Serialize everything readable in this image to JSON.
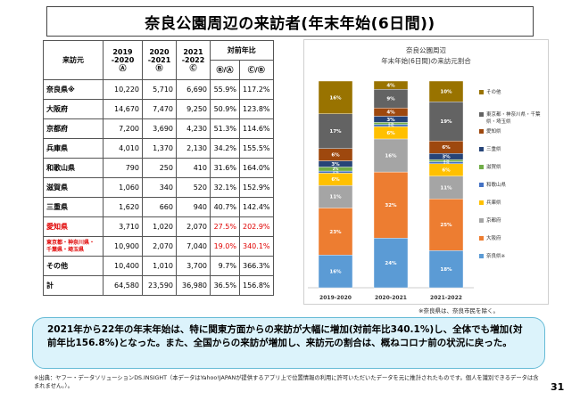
{
  "title": "奈良公園周辺の来訪者(年末年始(6日間))",
  "table": {
    "col_origin": "来訪元",
    "col_y1": "2019\n-2020\nⒶ",
    "col_y2": "2020\n-2021\nⒷ",
    "col_y3": "2021\n-2022\nⒸ",
    "col_ratio": "対前年比",
    "col_ba": "Ⓑ/Ⓐ",
    "col_cb": "Ⓒ/Ⓑ",
    "rows": [
      {
        "name": "奈良県※",
        "y1": "10,220",
        "y2": "5,710",
        "y3": "6,690",
        "ba": "55.9%",
        "cb": "117.2%"
      },
      {
        "name": "大阪府",
        "y1": "14,670",
        "y2": "7,470",
        "y3": "9,250",
        "ba": "50.9%",
        "cb": "123.8%"
      },
      {
        "name": "京都府",
        "y1": "7,200",
        "y2": "3,690",
        "y3": "4,230",
        "ba": "51.3%",
        "cb": "114.6%"
      },
      {
        "name": "兵庫県",
        "y1": "4,010",
        "y2": "1,370",
        "y3": "2,130",
        "ba": "34.2%",
        "cb": "155.5%"
      },
      {
        "name": "和歌山県",
        "y1": "790",
        "y2": "250",
        "y3": "410",
        "ba": "31.6%",
        "cb": "164.0%"
      },
      {
        "name": "滋賀県",
        "y1": "1,060",
        "y2": "340",
        "y3": "520",
        "ba": "32.1%",
        "cb": "152.9%"
      },
      {
        "name": "三重県",
        "y1": "1,620",
        "y2": "660",
        "y3": "940",
        "ba": "40.7%",
        "cb": "142.4%"
      },
      {
        "name": "愛知県",
        "y1": "3,710",
        "y2": "1,020",
        "y3": "2,070",
        "ba": "27.5%",
        "cb": "202.9%",
        "red": true
      },
      {
        "name": "東京都・神奈川県・\n千葉県・埼玉県",
        "y1": "10,900",
        "y2": "2,070",
        "y3": "7,040",
        "ba": "19.0%",
        "cb": "340.1%",
        "red": true
      },
      {
        "name": "その他",
        "y1": "10,400",
        "y2": "1,010",
        "y3": "3,700",
        "ba": "9.7%",
        "cb": "366.3%"
      },
      {
        "name": "計",
        "y1": "64,580",
        "y2": "23,590",
        "y3": "36,980",
        "ba": "36.5%",
        "cb": "156.8%"
      }
    ]
  },
  "chart_data": {
    "type": "bar",
    "stacked": true,
    "title": "奈良公園周辺",
    "subtitle": "年末年始(6日間)の来訪元割合",
    "categories": [
      "2019-2020",
      "2020-2021",
      "2021-2022"
    ],
    "ylim": [
      0,
      100
    ],
    "series": [
      {
        "name": "奈良県※",
        "color": "#5b9bd5",
        "values": [
          16,
          24,
          18
        ],
        "labels": [
          "16%",
          "24%",
          "18%"
        ]
      },
      {
        "name": "大阪府",
        "color": "#ed7d31",
        "values": [
          23,
          32,
          25
        ],
        "labels": [
          "23%",
          "32%",
          "25%"
        ]
      },
      {
        "name": "京都府",
        "color": "#a5a5a5",
        "values": [
          11,
          16,
          11
        ],
        "labels": [
          "11%",
          "16%",
          "11%"
        ]
      },
      {
        "name": "兵庫県",
        "color": "#ffc000",
        "values": [
          6,
          6,
          6
        ],
        "labels": [
          "6%",
          "6%",
          "6%"
        ]
      },
      {
        "name": "和歌山県",
        "color": "#4472c4",
        "values": [
          1,
          1,
          1
        ],
        "labels": [
          "1%",
          "1%",
          "1%"
        ]
      },
      {
        "name": "滋賀県",
        "color": "#70ad47",
        "values": [
          2,
          1,
          1
        ],
        "labels": [
          "2%",
          "1%",
          "1%"
        ]
      },
      {
        "name": "三重県",
        "color": "#264478",
        "values": [
          3,
          3,
          3
        ],
        "labels": [
          "3%",
          "3%",
          "3%"
        ]
      },
      {
        "name": "愛知県",
        "color": "#9e480e",
        "values": [
          6,
          4,
          6
        ],
        "labels": [
          "6%",
          "4%",
          "6%"
        ]
      },
      {
        "name": "東京都・神奈川県・千葉県・埼玉県",
        "color": "#636363",
        "values": [
          17,
          9,
          19
        ],
        "labels": [
          "17%",
          "9%",
          "19%"
        ]
      },
      {
        "name": "その他",
        "color": "#997300",
        "values": [
          16,
          4,
          10
        ],
        "labels": [
          "16%",
          "4%",
          "10%"
        ]
      }
    ],
    "legend_position": "right",
    "grid": false
  },
  "chart_note": "※奈良県は、奈良市民を除く。",
  "callout": "2021年から22年の年末年始は、特に関東方面からの来訪が大幅に増加(対前年比340.1%)し、全体でも増加(対前年比156.8%)となった。また、全国からの来訪が増加し、来訪元の割合は、概ねコロナ前の状況に戻った。",
  "source": "※出典：ヤフー・データソリューションDS.INSIGHT（本データはYahoo!JAPANが提供するアプリ上で位置情報の利用に許可いただいたデータを元に推計されたものです。個人を識別できるデータは含まれません。）。",
  "page_number": "31"
}
